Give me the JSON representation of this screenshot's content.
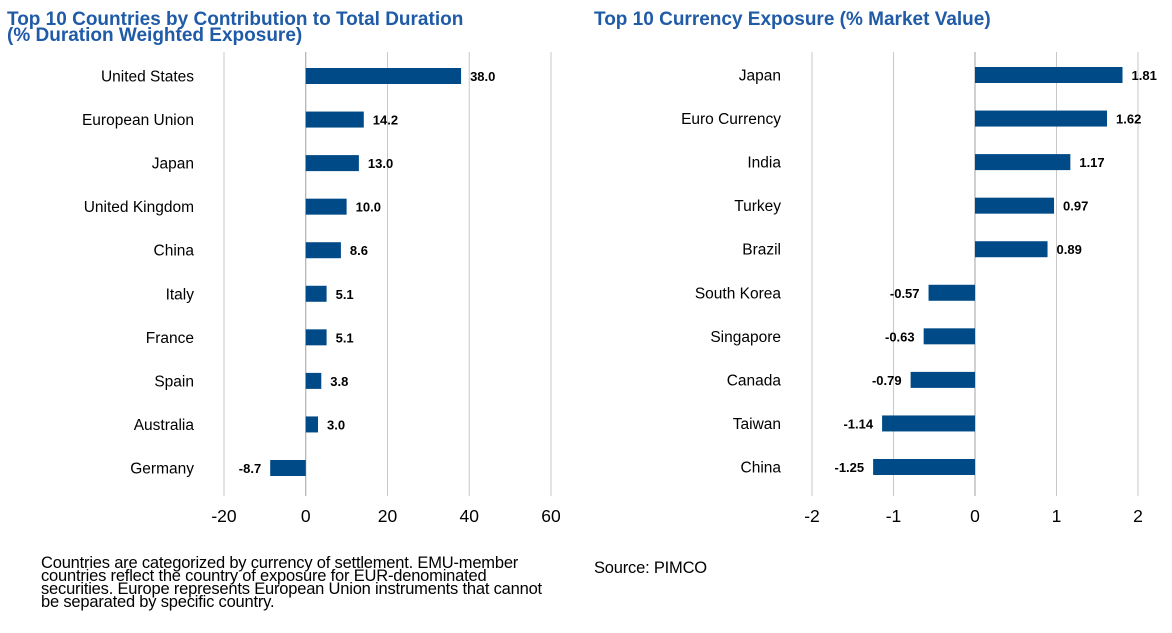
{
  "chart_data": [
    {
      "type": "bar",
      "orientation": "horizontal",
      "title": "Top 10 Countries by Contribution to Total Duration (% Duration Weighted Exposure)",
      "categories": [
        "United States",
        "European Union",
        "Japan",
        "United Kingdom",
        "China",
        "Italy",
        "France",
        "Spain",
        "Australia",
        "Germany"
      ],
      "values": [
        38.0,
        14.2,
        13.0,
        10.0,
        8.6,
        5.1,
        5.1,
        3.8,
        3.0,
        -8.7
      ],
      "value_labels": [
        "38.0",
        "14.2",
        "13.0",
        "10.0",
        "8.6",
        "5.1",
        "5.1",
        "3.8",
        "3.0",
        "-8.7"
      ],
      "xlim": [
        -20,
        60
      ],
      "xticks": [
        -20,
        0,
        20,
        40,
        60
      ],
      "xtick_labels": [
        "-20",
        "0",
        "20",
        "40",
        "60"
      ],
      "grid": true,
      "bar_color": "#004b87",
      "xlabel": "",
      "ylabel": ""
    },
    {
      "type": "bar",
      "orientation": "horizontal",
      "title": "Top 10 Currency Exposure (% Market Value)",
      "categories": [
        "Japan",
        "Euro Currency",
        "India",
        "Turkey",
        "Brazil",
        "South Korea",
        "Singapore",
        "Canada",
        "Taiwan",
        "China"
      ],
      "values": [
        1.81,
        1.62,
        1.17,
        0.97,
        0.89,
        -0.57,
        -0.63,
        -0.79,
        -1.14,
        -1.25
      ],
      "value_labels": [
        "1.81",
        "1.62",
        "1.17",
        "0.97",
        "0.89",
        "-0.57",
        "-0.63",
        "-0.79",
        "-1.14",
        "-1.25"
      ],
      "xlim": [
        -2,
        2
      ],
      "xticks": [
        -2,
        -1,
        0,
        1,
        2
      ],
      "xtick_labels": [
        "-2",
        "-1",
        "0",
        "1",
        "2"
      ],
      "grid": true,
      "bar_color": "#004b87",
      "xlabel": "",
      "ylabel": ""
    }
  ],
  "footnote": "Countries are categorized by currency of settlement. EMU-member countries reflect the country of exposure for EUR-denominated securities. Europe represents European Union instruments that cannot be separated by specific country.",
  "source": "Source: PIMCO",
  "colors": {
    "title": "#1f5ba6",
    "bar": "#004b87",
    "grid": "#c8c8c8"
  }
}
